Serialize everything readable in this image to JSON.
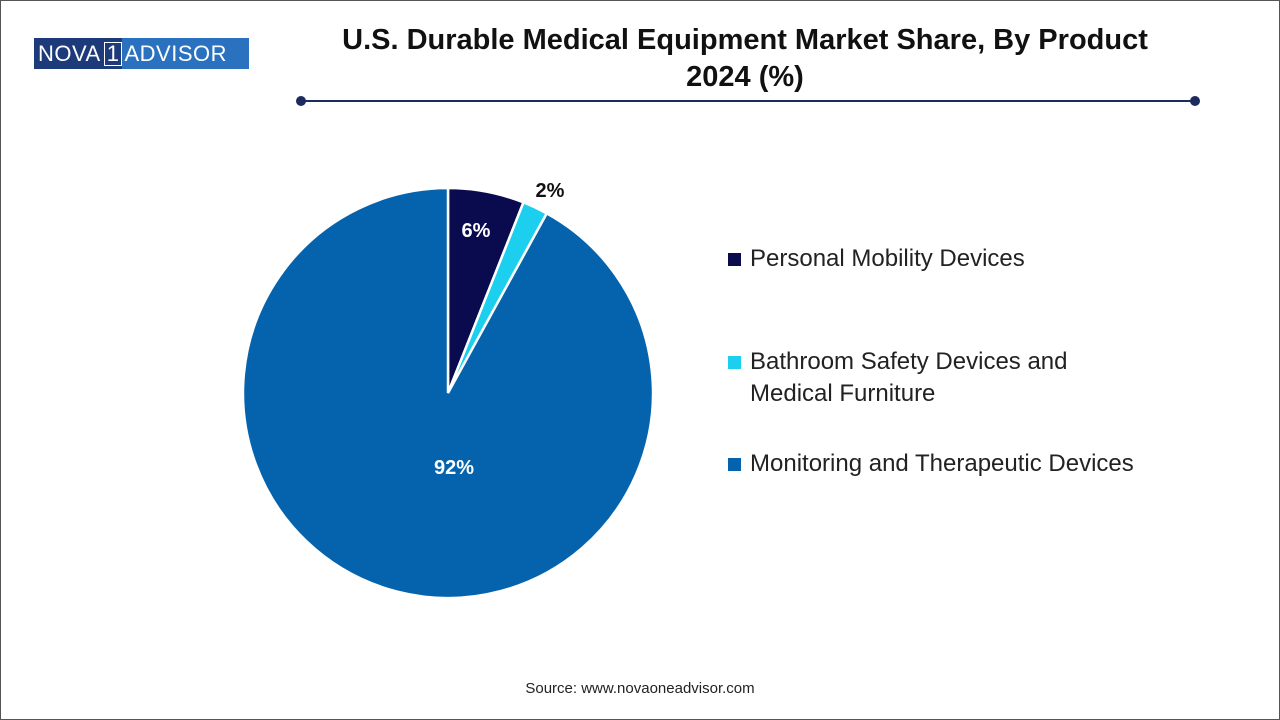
{
  "logo": {
    "left": "NOVA",
    "mid": "1",
    "right": "ADVISOR"
  },
  "title_line1": "U.S. Durable Medical Equipment Market Share, By Product",
  "title_line2": "2024 (%)",
  "source": "Source: www.novaoneadvisor.com",
  "chart_data": {
    "type": "pie",
    "title": "U.S. Durable Medical Equipment Market Share, By Product 2024 (%)",
    "categories": [
      "Personal Mobility Devices",
      "Bathroom Safety Devices and Medical Furniture",
      "Monitoring and Therapeutic Devices"
    ],
    "legend_lines": [
      [
        "Personal Mobility Devices"
      ],
      [
        "Bathroom Safety Devices and",
        "Medical Furniture"
      ],
      [
        "Monitoring and Therapeutic Devices"
      ]
    ],
    "values": [
      6,
      2,
      92
    ],
    "labels": [
      "6%",
      "2%",
      "92%"
    ],
    "colors": [
      "#0a0a4f",
      "#1ccfef",
      "#0563ad"
    ],
    "legend_position": "right"
  }
}
